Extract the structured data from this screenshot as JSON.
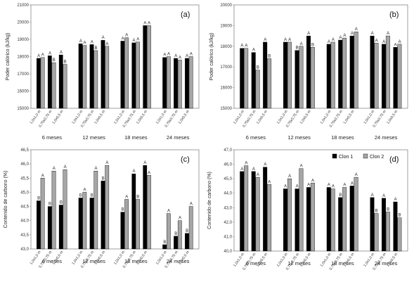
{
  "chart_data": [
    {
      "panel": "(a)",
      "type": "bar",
      "ylabel": "Poder calórico (kJ/kg)",
      "ylim": [
        15000,
        21000
      ],
      "yticks": [
        "15000",
        "16000",
        "17000",
        "18000",
        "19000",
        "20000",
        "21000"
      ],
      "ydecimals": 0,
      "groups": [
        "6 meses",
        "12 meses",
        "18 meses",
        "24 meses"
      ],
      "categories": [
        "1,0x1,0 m",
        "0,75x0,75 m",
        "1,0x0,5 m"
      ],
      "series": [
        {
          "color": "#000000",
          "values": [
            [
              17900,
              18050,
              18100
            ],
            [
              18750,
              18700,
              18950
            ],
            [
              18900,
              18800,
              19800
            ],
            [
              17950,
              17900,
              17900
            ]
          ],
          "labels": [
            [
              "A",
              "A",
              "A"
            ],
            [
              "A",
              "A",
              "A"
            ],
            [
              "A",
              "A",
              "A"
            ],
            [
              "A",
              "A",
              "A"
            ]
          ]
        },
        {
          "color": "#a6a6a6",
          "values": [
            [
              17950,
              17650,
              17550
            ],
            [
              18650,
              18350,
              18600
            ],
            [
              19100,
              18850,
              19800
            ],
            [
              18000,
              17800,
              18000
            ]
          ],
          "labels": [
            [
              "A",
              "B",
              "B"
            ],
            [
              "A",
              "B",
              "A"
            ],
            [
              "A",
              "A",
              "A"
            ],
            [
              "A",
              "A",
              "A"
            ]
          ]
        }
      ],
      "legend": null
    },
    {
      "panel": "(b)",
      "type": "bar",
      "ylabel": "Poder calórico (kJ/kg)",
      "ylim": [
        15000,
        20000
      ],
      "yticks": [
        "15000",
        "16000",
        "17000",
        "18000",
        "19000",
        "20000"
      ],
      "ydecimals": 0,
      "groups": [
        "6 meses",
        "12 meses",
        "18 meses",
        "24 meses"
      ],
      "categories": [
        "1,0x1,0 m",
        "0,75x0,75 m",
        "1,0x0,5 m"
      ],
      "series": [
        {
          "color": "#000000",
          "values": [
            [
              17900,
              17700,
              18200
            ],
            [
              18200,
              17800,
              18500
            ],
            [
              18100,
              18300,
              18500
            ],
            [
              18500,
              18100,
              17950
            ]
          ],
          "labels": [
            [
              "A",
              "A",
              "A"
            ],
            [
              "A",
              "B",
              "A"
            ],
            [
              "A",
              "A",
              "A"
            ],
            [
              "A",
              "A",
              "A"
            ]
          ]
        },
        {
          "color": "#a6a6a6",
          "values": [
            [
              17900,
              16850,
              17400
            ],
            [
              18200,
              18000,
              17950
            ],
            [
              18200,
              18400,
              18700
            ],
            [
              18150,
              18500,
              18100
            ]
          ],
          "labels": [
            [
              "A",
              "B",
              "B"
            ],
            [
              "A",
              "A",
              "B"
            ],
            [
              "A",
              "A",
              "A"
            ],
            [
              "A",
              "A",
              "A"
            ]
          ]
        }
      ],
      "legend": null
    },
    {
      "panel": "(c)",
      "type": "bar",
      "ylabel": "Contenido de carbono (%)",
      "ylim": [
        43.0,
        46.5
      ],
      "yticks": [
        "43,0",
        "43,5",
        "44,0",
        "44,5",
        "45,0",
        "45,5",
        "46,0",
        "46,5"
      ],
      "ydecimals": 1,
      "groups": [
        "6 meses",
        "12 meses",
        "18 meses",
        "24 meses"
      ],
      "categories": [
        "1,0x1,0 m",
        "0,75x0,75 m",
        "1,0x0,5 m"
      ],
      "series": [
        {
          "color": "#000000",
          "values": [
            [
              44.7,
              44.5,
              44.55
            ],
            [
              44.8,
              44.8,
              45.4
            ],
            [
              44.3,
              45.65,
              45.95
            ],
            [
              43.15,
              43.45,
              43.55
            ]
          ],
          "labels": [
            [
              "B",
              "B",
              "B"
            ],
            [
              "B",
              "B",
              "B"
            ],
            [
              "B",
              "A",
              "A"
            ],
            [
              "B",
              "B",
              "B"
            ]
          ]
        },
        {
          "color": "#a6a6a6",
          "values": [
            [
              45.5,
              45.75,
              45.8
            ],
            [
              45.0,
              45.75,
              45.95
            ],
            [
              44.75,
              44.75,
              45.6
            ],
            [
              44.25,
              44.0,
              44.5
            ]
          ],
          "labels": [
            [
              "A",
              "A",
              "A"
            ],
            [
              "A",
              "A",
              "A"
            ],
            [
              "A",
              "B",
              "A"
            ],
            [
              "A",
              "A",
              "A"
            ]
          ]
        }
      ],
      "legend": null
    },
    {
      "panel": "(d)",
      "type": "bar",
      "ylabel": "Contenido de carbono (%)",
      "ylim": [
        40.0,
        47.0
      ],
      "yticks": [
        "40,0",
        "41,0",
        "42,0",
        "43,0",
        "44,0",
        "45,0",
        "46,0",
        "47,0"
      ],
      "ydecimals": 1,
      "groups": [
        "6 meses",
        "12 meses",
        "18 meses",
        "24 meses"
      ],
      "categories": [
        "1,0x1,0 m",
        "0,75x0,75 m",
        "1,0x0,5 m"
      ],
      "series": [
        {
          "name": "Clon 1",
          "color": "#000000",
          "values": [
            [
              45.5,
              45.5,
              45.8
            ],
            [
              44.3,
              44.3,
              44.4
            ],
            [
              44.4,
              43.7,
              44.5
            ],
            [
              43.7,
              43.65,
              43.4
            ]
          ],
          "labels": [
            [
              "A",
              "A",
              "A"
            ],
            [
              "A",
              "A",
              "A"
            ],
            [
              "A",
              "B",
              "A"
            ],
            [
              "A",
              "A",
              "A"
            ]
          ]
        },
        {
          "name": "Clon 2",
          "color": "#a6a6a6",
          "values": [
            [
              45.9,
              45.1,
              44.6
            ],
            [
              45.0,
              45.7,
              44.7
            ],
            [
              44.3,
              44.4,
              45.1
            ],
            [
              42.6,
              42.7,
              42.3
            ]
          ],
          "labels": [
            [
              "A",
              "A",
              "A"
            ],
            [
              "A",
              "A",
              "A"
            ],
            [
              "A",
              "A",
              "A"
            ],
            [
              "B",
              "B",
              "B"
            ]
          ]
        }
      ],
      "legend": {
        "placement": "top-right",
        "entries": [
          "Clon 1",
          "Clon 2"
        ]
      }
    }
  ]
}
